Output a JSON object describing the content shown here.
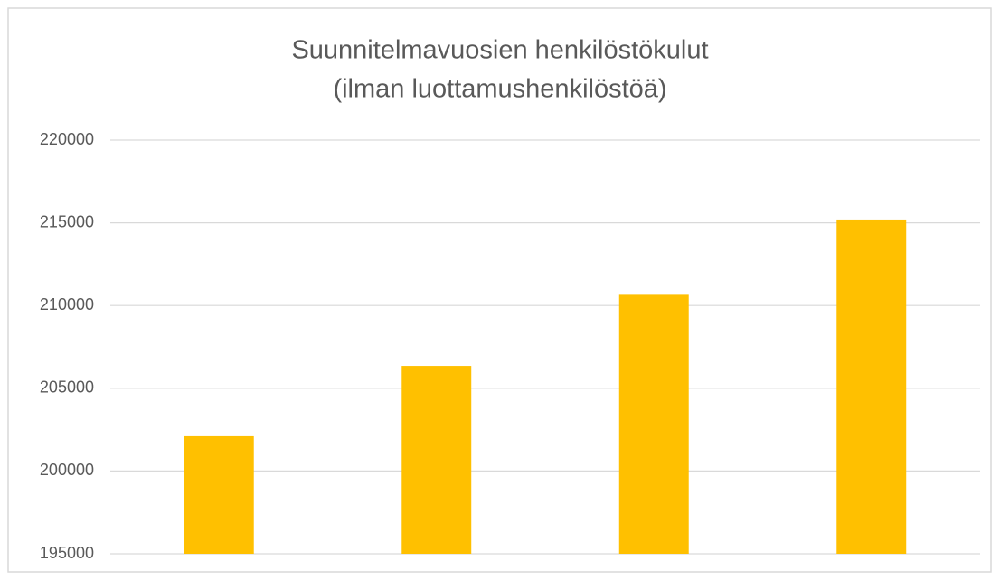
{
  "chart_data": {
    "type": "bar",
    "title": [
      "Suunnitelmavuosien henkilöstökulut",
      "(ilman luottamushenkilöstöä)"
    ],
    "categories": [
      null,
      null,
      null,
      null
    ],
    "values": [
      202100,
      206350,
      210700,
      215200
    ],
    "color": "#ffc000",
    "ylim": [
      195000,
      220000
    ],
    "yticks": [
      195000,
      200000,
      205000,
      210000,
      215000,
      220000
    ],
    "grid": true
  }
}
